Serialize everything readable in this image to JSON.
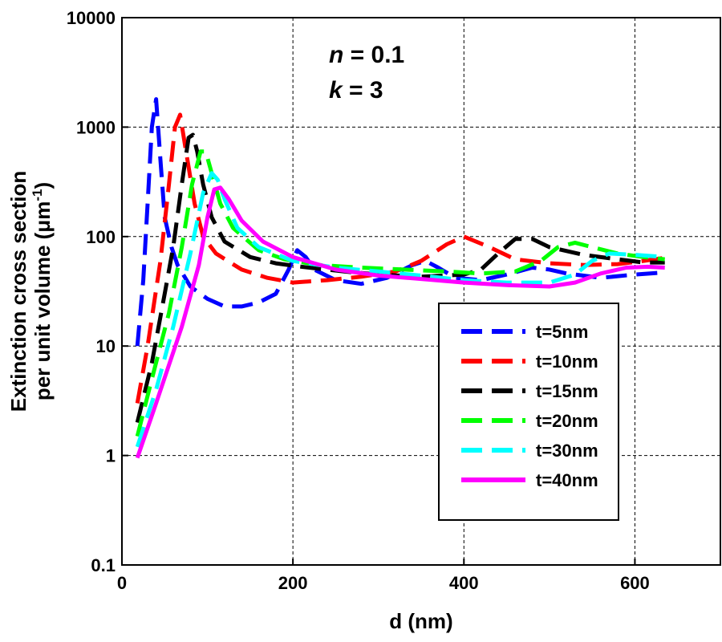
{
  "chart_data": {
    "type": "line",
    "title": "",
    "xlabel": "d (nm)",
    "ylabel_line1": "Extinction cross section",
    "ylabel_line2_prefix": "per unit volume (",
    "ylabel_unit": "μm",
    "ylabel_exponent": "-1",
    "ylabel_close": ")",
    "xlim": [
      0,
      700
    ],
    "ylim": [
      0.1,
      10000
    ],
    "yscale": "log",
    "grid": true,
    "legend_position": "right",
    "x_ticks": [
      {
        "value": 0,
        "label": "0"
      },
      {
        "value": 200,
        "label": "200"
      },
      {
        "value": 400,
        "label": "400"
      },
      {
        "value": 600,
        "label": "600"
      }
    ],
    "y_ticks": [
      {
        "value": 0.1,
        "label": "0.1"
      },
      {
        "value": 1,
        "label": "1"
      },
      {
        "value": 10,
        "label": "10"
      },
      {
        "value": 100,
        "label": "100"
      },
      {
        "value": 1000,
        "label": "1000"
      },
      {
        "value": 10000,
        "label": "10000"
      }
    ],
    "annotations": {
      "n_symbol": "n",
      "n_value": " = 0.1",
      "k_symbol": "k",
      "k_value": " = 3"
    },
    "series": [
      {
        "name": "t=5nm",
        "color": "#0000ff",
        "dash": "dash",
        "points": [
          [
            18,
            10
          ],
          [
            25,
            40
          ],
          [
            30,
            200
          ],
          [
            35,
            1000
          ],
          [
            40,
            1800
          ],
          [
            45,
            500
          ],
          [
            50,
            150
          ],
          [
            58,
            80
          ],
          [
            65,
            55
          ],
          [
            80,
            35
          ],
          [
            100,
            27
          ],
          [
            120,
            23
          ],
          [
            140,
            23
          ],
          [
            160,
            25
          ],
          [
            180,
            30
          ],
          [
            195,
            50
          ],
          [
            205,
            75
          ],
          [
            215,
            65
          ],
          [
            225,
            50
          ],
          [
            250,
            40
          ],
          [
            280,
            37
          ],
          [
            310,
            42
          ],
          [
            340,
            55
          ],
          [
            355,
            60
          ],
          [
            370,
            52
          ],
          [
            390,
            42
          ],
          [
            420,
            40
          ],
          [
            450,
            45
          ],
          [
            480,
            52
          ],
          [
            500,
            50
          ],
          [
            520,
            46
          ],
          [
            560,
            42
          ],
          [
            600,
            45
          ],
          [
            635,
            47
          ]
        ]
      },
      {
        "name": "t=10nm",
        "color": "#ff0000",
        "dash": "dash",
        "points": [
          [
            18,
            3
          ],
          [
            30,
            10
          ],
          [
            45,
            60
          ],
          [
            55,
            300
          ],
          [
            62,
            1000
          ],
          [
            68,
            1300
          ],
          [
            75,
            600
          ],
          [
            85,
            200
          ],
          [
            95,
            100
          ],
          [
            110,
            70
          ],
          [
            140,
            50
          ],
          [
            170,
            42
          ],
          [
            200,
            38
          ],
          [
            240,
            40
          ],
          [
            280,
            43
          ],
          [
            320,
            48
          ],
          [
            350,
            60
          ],
          [
            380,
            85
          ],
          [
            400,
            100
          ],
          [
            430,
            80
          ],
          [
            460,
            62
          ],
          [
            500,
            57
          ],
          [
            540,
            55
          ],
          [
            580,
            56
          ],
          [
            610,
            60
          ],
          [
            635,
            64
          ]
        ]
      },
      {
        "name": "t=15nm",
        "color": "#000000",
        "dash": "dash",
        "points": [
          [
            18,
            2
          ],
          [
            35,
            7
          ],
          [
            50,
            30
          ],
          [
            60,
            80
          ],
          [
            70,
            300
          ],
          [
            78,
            800
          ],
          [
            83,
            850
          ],
          [
            88,
            600
          ],
          [
            95,
            300
          ],
          [
            105,
            150
          ],
          [
            120,
            90
          ],
          [
            150,
            65
          ],
          [
            180,
            57
          ],
          [
            210,
            53
          ],
          [
            260,
            48
          ],
          [
            300,
            45
          ],
          [
            350,
            43
          ],
          [
            400,
            45
          ],
          [
            420,
            50
          ],
          [
            440,
            70
          ],
          [
            460,
            95
          ],
          [
            480,
            95
          ],
          [
            500,
            80
          ],
          [
            540,
            68
          ],
          [
            580,
            62
          ],
          [
            610,
            58
          ],
          [
            635,
            58
          ]
        ]
      },
      {
        "name": "t=20nm",
        "color": "#00ff00",
        "dash": "dash",
        "points": [
          [
            18,
            1.5
          ],
          [
            35,
            5
          ],
          [
            55,
            20
          ],
          [
            70,
            80
          ],
          [
            82,
            300
          ],
          [
            92,
            600
          ],
          [
            98,
            600
          ],
          [
            105,
            380
          ],
          [
            115,
            200
          ],
          [
            130,
            120
          ],
          [
            160,
            75
          ],
          [
            190,
            62
          ],
          [
            230,
            55
          ],
          [
            280,
            52
          ],
          [
            330,
            50
          ],
          [
            380,
            48
          ],
          [
            420,
            46
          ],
          [
            460,
            48
          ],
          [
            490,
            60
          ],
          [
            510,
            80
          ],
          [
            530,
            88
          ],
          [
            550,
            80
          ],
          [
            580,
            70
          ],
          [
            610,
            65
          ],
          [
            635,
            62
          ]
        ]
      },
      {
        "name": "t=30nm",
        "color": "#00ffff",
        "dash": "dash",
        "points": [
          [
            18,
            1.2
          ],
          [
            40,
            4
          ],
          [
            60,
            15
          ],
          [
            80,
            70
          ],
          [
            95,
            250
          ],
          [
            105,
            380
          ],
          [
            112,
            330
          ],
          [
            120,
            220
          ],
          [
            135,
            120
          ],
          [
            160,
            80
          ],
          [
            200,
            60
          ],
          [
            250,
            52
          ],
          [
            300,
            48
          ],
          [
            350,
            44
          ],
          [
            400,
            40
          ],
          [
            450,
            38
          ],
          [
            500,
            38
          ],
          [
            530,
            45
          ],
          [
            550,
            60
          ],
          [
            570,
            70
          ],
          [
            600,
            68
          ],
          [
            635,
            65
          ]
        ]
      },
      {
        "name": "t=40nm",
        "color": "#ff00ff",
        "dash": "solid",
        "points": [
          [
            18,
            0.95
          ],
          [
            40,
            3
          ],
          [
            70,
            15
          ],
          [
            90,
            55
          ],
          [
            100,
            150
          ],
          [
            108,
            270
          ],
          [
            115,
            280
          ],
          [
            125,
            220
          ],
          [
            140,
            140
          ],
          [
            165,
            90
          ],
          [
            200,
            65
          ],
          [
            250,
            50
          ],
          [
            300,
            44
          ],
          [
            350,
            41
          ],
          [
            400,
            38
          ],
          [
            450,
            36
          ],
          [
            500,
            35
          ],
          [
            530,
            38
          ],
          [
            560,
            46
          ],
          [
            590,
            52
          ],
          [
            615,
            53
          ],
          [
            635,
            52
          ]
        ]
      }
    ]
  }
}
